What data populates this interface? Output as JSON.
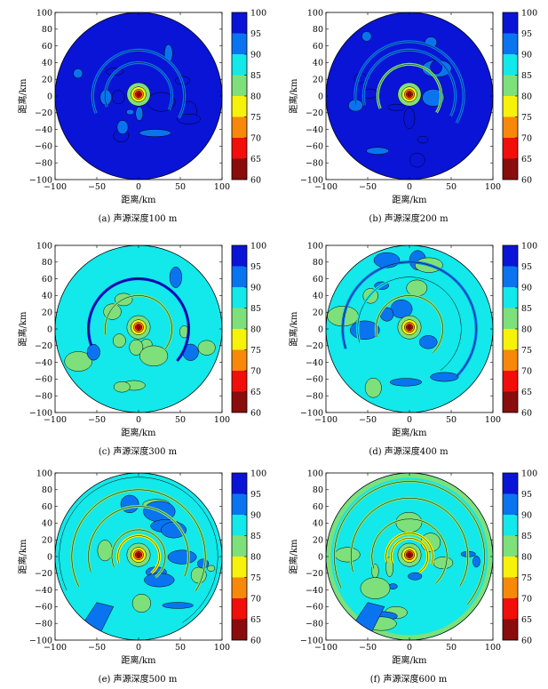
{
  "chart_data": {
    "type": "heatmap",
    "xlabel": "距离/km",
    "ylabel": "距离/km",
    "x_ticks": [
      -100,
      -50,
      0,
      50,
      100
    ],
    "y_ticks": [
      100,
      80,
      60,
      40,
      20,
      0,
      -20,
      -40,
      -60,
      -80,
      -100
    ],
    "xlim": [
      -100,
      100
    ],
    "ylim": [
      -100,
      100
    ],
    "colorbar": {
      "ticks": [
        100,
        95,
        90,
        85,
        80,
        75,
        70,
        65,
        60
      ],
      "range": [
        60,
        100
      ],
      "levels": [
        {
          "range": [
            95,
            100
          ],
          "color": "#0a14d6"
        },
        {
          "range": [
            90,
            95
          ],
          "color": "#0a74f0"
        },
        {
          "range": [
            85,
            90
          ],
          "color": "#13e8ea"
        },
        {
          "range": [
            80,
            85
          ],
          "color": "#7ee07a"
        },
        {
          "range": [
            75,
            80
          ],
          "color": "#f7f20a"
        },
        {
          "range": [
            70,
            75
          ],
          "color": "#f7880a"
        },
        {
          "range": [
            65,
            70
          ],
          "color": "#f20e0a"
        },
        {
          "range": [
            60,
            65
          ],
          "color": "#8a0c0c"
        }
      ]
    },
    "panels": [
      {
        "caption": "(a) 声源深度100 m",
        "depth_m": 100
      },
      {
        "caption": "(b) 声源深度200 m",
        "depth_m": 200
      },
      {
        "caption": "(c) 声源深度300 m",
        "depth_m": 300
      },
      {
        "caption": "(d) 声源深度400 m",
        "depth_m": 400
      },
      {
        "caption": "(e) 声源深度500 m",
        "depth_m": 500
      },
      {
        "caption": "(f) 声源深度600 m",
        "depth_m": 600
      }
    ]
  }
}
